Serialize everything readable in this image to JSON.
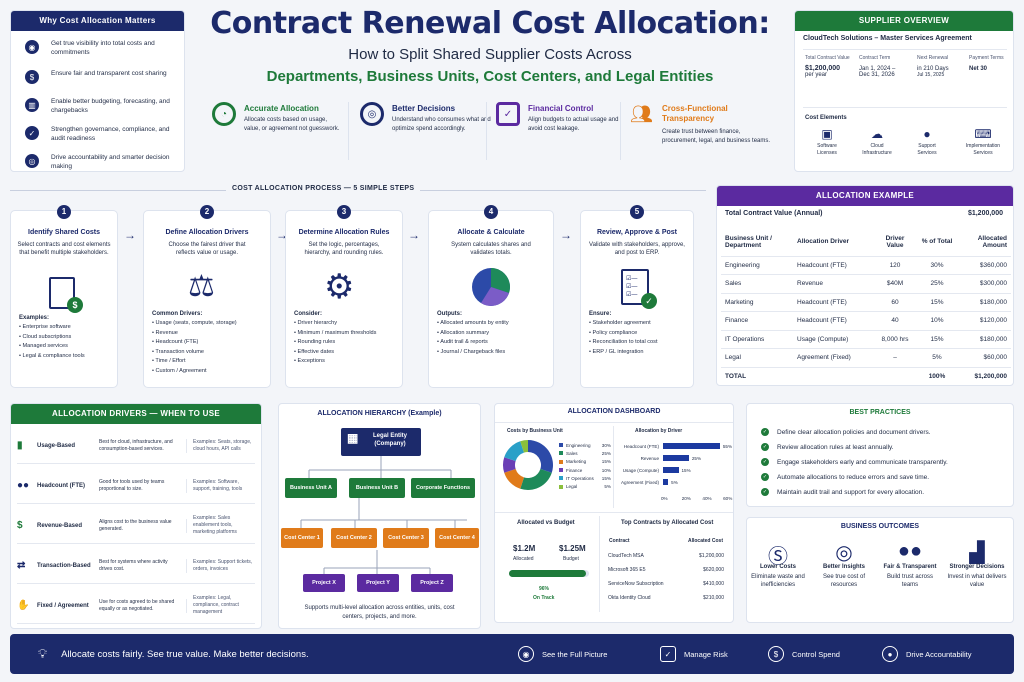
{
  "title": "Contract Renewal Cost Allocation:",
  "subtitle": "How to Split Shared Supplier Costs Across",
  "subtitle2": "Departments, Business Units, Cost Centers, and Legal Entities",
  "why": {
    "title": "Why Cost Allocation Matters",
    "items": [
      "Get true visibility into total costs and commitments",
      "Ensure fair and transparent cost sharing",
      "Enable better budgeting, forecasting, and chargebacks",
      "Strengthen governance, compliance, and audit readiness",
      "Drive accountability and smarter decision making"
    ]
  },
  "benefits": [
    {
      "title": "Accurate Allocation",
      "desc": "Allocate costs based on usage, value, or agreement not guesswork."
    },
    {
      "title": "Better Decisions",
      "desc": "Understand who consumes what and optimize spend accordingly."
    },
    {
      "title": "Financial Control",
      "desc": "Align budgets to actual usage and avoid cost leakage."
    },
    {
      "title": "Cross-Functional Transparency",
      "desc": "Create trust between finance, procurement, legal, and business teams."
    }
  ],
  "supplier": {
    "title": "SUPPLIER OVERVIEW",
    "name": "CloudTech Solutions – Master Services Agreement",
    "stats": [
      {
        "label": "Total Contract Value",
        "value": "$1,200,000",
        "sub": "per year"
      },
      {
        "label": "Contract Term",
        "value": "Jan 1, 2024 –",
        "sub": "Dec 31, 2026"
      },
      {
        "label": "Next Renewal",
        "value": "in 210 Days",
        "sub": "Jul 15, 2025"
      },
      {
        "label": "Payment Terms",
        "value": "Net 30",
        "sub": ""
      }
    ],
    "elements_label": "Cost Elements",
    "elements": [
      "Software Licenses",
      "Cloud Infrastructure",
      "Support Services",
      "Implementation Services"
    ]
  },
  "process": {
    "title": "COST ALLOCATION PROCESS — 5 SIMPLE STEPS",
    "steps": [
      {
        "n": "1",
        "title": "Identify Shared Costs",
        "desc": "Select contracts and cost elements that benefit multiple stakeholders.",
        "head": "Examples:",
        "items": [
          "Enterprise software",
          "Cloud subscriptions",
          "Managed services",
          "Legal & compliance tools"
        ]
      },
      {
        "n": "2",
        "title": "Define Allocation Drivers",
        "desc": "Choose the fairest driver that reflects value or usage.",
        "head": "Common Drivers:",
        "items": [
          "Usage (seats, compute, storage)",
          "Revenue",
          "Headcount (FTE)",
          "Transaction volume",
          "Time / Effort",
          "Custom / Agreement"
        ]
      },
      {
        "n": "3",
        "title": "Determine Allocation Rules",
        "desc": "Set the logic, percentages, hierarchy, and rounding rules.",
        "head": "Consider:",
        "items": [
          "Driver hierarchy",
          "Minimum / maximum thresholds",
          "Rounding rules",
          "Effective dates",
          "Exceptions"
        ]
      },
      {
        "n": "4",
        "title": "Allocate & Calculate",
        "desc": "System calculates shares and validates totals.",
        "head": "Outputs:",
        "items": [
          "Allocated amounts by entity",
          "Allocation summary",
          "Audit trail & reports",
          "Journal / Chargeback files"
        ]
      },
      {
        "n": "5",
        "title": "Review, Approve & Post",
        "desc": "Validate with stakeholders, approve, and post to ERP.",
        "head": "Ensure:",
        "items": [
          "Stakeholder agreement",
          "Policy compliance",
          "Reconciliation to total cost",
          "ERP / GL integration"
        ]
      }
    ]
  },
  "example": {
    "title": "ALLOCATION EXAMPLE",
    "tcv_label": "Total Contract Value (Annual)",
    "tcv": "$1,200,000",
    "headers": [
      "Business Unit / Department",
      "Allocation Driver",
      "Driver Value",
      "% of Total",
      "Allocated Amount"
    ],
    "rows": [
      [
        "Engineering",
        "Headcount (FTE)",
        "120",
        "30%",
        "$360,000"
      ],
      [
        "Sales",
        "Revenue",
        "$40M",
        "25%",
        "$300,000"
      ],
      [
        "Marketing",
        "Headcount (FTE)",
        "60",
        "15%",
        "$180,000"
      ],
      [
        "Finance",
        "Headcount (FTE)",
        "40",
        "10%",
        "$120,000"
      ],
      [
        "IT Operations",
        "Usage (Compute)",
        "8,000 hrs",
        "15%",
        "$180,000"
      ],
      [
        "Legal",
        "Agreement (Fixed)",
        "–",
        "5%",
        "$60,000"
      ]
    ],
    "total": [
      "TOTAL",
      "",
      "",
      "100%",
      "$1,200,000"
    ]
  },
  "drivers": {
    "title": "ALLOCATION DRIVERS — WHEN TO USE",
    "rows": [
      {
        "name": "Usage-Based",
        "best": "Best for cloud, infrastructure, and consumption-based services.",
        "ex": "Examples: Seats, storage, cloud hours, API calls"
      },
      {
        "name": "Headcount (FTE)",
        "best": "Good for tools used by teams proportional to size.",
        "ex": "Examples: Software, support, training, tools"
      },
      {
        "name": "Revenue-Based",
        "best": "Aligns cost to the business value generated.",
        "ex": "Examples: Sales enablement tools, marketing platforms"
      },
      {
        "name": "Transaction-Based",
        "best": "Best for systems where activity drives cost.",
        "ex": "Examples: Support tickets, orders, invoices"
      },
      {
        "name": "Fixed / Agreement",
        "best": "Use for costs agreed to be shared equally or as negotiated.",
        "ex": "Examples: Legal, compliance, contract management"
      }
    ]
  },
  "hierarchy": {
    "title": "ALLOCATION HIERARCHY (Example)",
    "top": "Legal Entity (Company)",
    "bus": [
      "Business Unit A",
      "Business Unit B",
      "Corporate Functions"
    ],
    "ccs": [
      "Cost Center 1",
      "Cost Center 2",
      "Cost Center 3",
      "Cost Center 4"
    ],
    "projects": [
      "Project X",
      "Project Y",
      "Project Z"
    ],
    "note": "Supports multi-level allocation across entities, units, cost centers, projects, and more."
  },
  "dashboard": {
    "title": "ALLOCATION DASHBOARD",
    "bu_title": "Costs by Business Unit",
    "bu": [
      {
        "name": "Engineering",
        "pct": "30%",
        "v": 30,
        "c": "#2c4aa8"
      },
      {
        "name": "Sales",
        "pct": "25%",
        "v": 25,
        "c": "#1e8a5a"
      },
      {
        "name": "Marketing",
        "pct": "15%",
        "v": 15,
        "c": "#e07b1a"
      },
      {
        "name": "Finance",
        "pct": "10%",
        "v": 10,
        "c": "#6a3fb5"
      },
      {
        "name": "IT Operations",
        "pct": "15%",
        "v": 15,
        "c": "#2aa0c8"
      },
      {
        "name": "Legal",
        "pct": "5%",
        "v": 5,
        "c": "#8bbf3c"
      }
    ],
    "drv_title": "Allocation by Driver",
    "drv": [
      {
        "name": "Headcount (FTE)",
        "pct": "55%",
        "v": 55
      },
      {
        "name": "Revenue",
        "pct": "25%",
        "v": 25
      },
      {
        "name": "Usage (Compute)",
        "pct": "15%",
        "v": 15
      },
      {
        "name": "Agreement (Fixed)",
        "pct": "5%",
        "v": 5
      }
    ],
    "ticks": [
      "0%",
      "20%",
      "40%",
      "60%"
    ],
    "budget_title": "Allocated vs Budget",
    "alloc": "$1.2M",
    "alloc_lbl": "Allocated",
    "budget": "$1.25M",
    "budget_lbl": "Budget",
    "ontrack_pct": "96%",
    "ontrack": "On Track",
    "ontrack_v": 0.96,
    "top_title": "Top Contracts by Allocated Cost",
    "top_h": [
      "Contract",
      "Allocated Cost"
    ],
    "top": [
      [
        "CloudTech MSA",
        "$1,200,000"
      ],
      [
        "Microsoft 365 E5",
        "$620,000"
      ],
      [
        "ServiceNow Subscription",
        "$410,000"
      ],
      [
        "Okta Identity Cloud",
        "$210,000"
      ]
    ]
  },
  "best": {
    "title": "BEST PRACTICES",
    "items": [
      "Define clear allocation policies and document drivers.",
      "Review allocation rules at least annually.",
      "Engage stakeholders early and communicate transparently.",
      "Automate allocations to reduce errors and save time.",
      "Maintain audit trail and support for every allocation."
    ]
  },
  "outcomes": {
    "title": "BUSINESS OUTCOMES",
    "items": [
      {
        "t": "Lower Costs",
        "d": "Eliminate waste and inefficiencies"
      },
      {
        "t": "Better Insights",
        "d": "See true cost of resources"
      },
      {
        "t": "Fair & Transparent",
        "d": "Build trust across teams"
      },
      {
        "t": "Stronger Decisions",
        "d": "Invest in what delivers value"
      }
    ]
  },
  "footer": {
    "tag": "Allocate costs fairly. See true value.  Make better decisions.",
    "items": [
      "See the Full Picture",
      "Manage Risk",
      "Control Spend",
      "Drive Accountability"
    ]
  }
}
